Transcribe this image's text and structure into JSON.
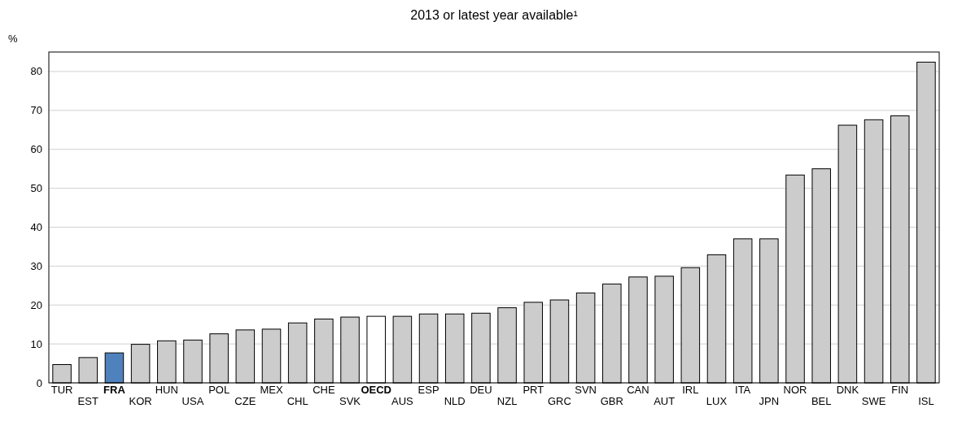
{
  "chart_data": {
    "type": "bar",
    "title": "2013 or latest year available¹",
    "ylabel": "%",
    "categories": [
      "TUR",
      "EST",
      "FRA",
      "KOR",
      "HUN",
      "USA",
      "POL",
      "CZE",
      "MEX",
      "CHL",
      "CHE",
      "SVK",
      "OECD",
      "AUS",
      "ESP",
      "NLD",
      "DEU",
      "NZL",
      "PRT",
      "GRC",
      "SVN",
      "GBR",
      "CAN",
      "AUT",
      "IRL",
      "LUX",
      "ITA",
      "JPN",
      "NOR",
      "BEL",
      "DNK",
      "SWE",
      "FIN",
      "ISL"
    ],
    "values": [
      4.7,
      6.5,
      7.7,
      9.9,
      10.8,
      11.0,
      12.6,
      13.6,
      13.8,
      15.4,
      16.4,
      16.9,
      17.1,
      17.1,
      17.7,
      17.7,
      17.9,
      19.3,
      20.7,
      21.3,
      23.1,
      25.4,
      27.2,
      27.4,
      29.6,
      32.9,
      37.0,
      37.0,
      53.4,
      55.0,
      66.2,
      67.6,
      68.6,
      82.4
    ],
    "colors": [
      "#cccccc",
      "#cccccc",
      "#4f81bd",
      "#cccccc",
      "#cccccc",
      "#cccccc",
      "#cccccc",
      "#cccccc",
      "#cccccc",
      "#cccccc",
      "#cccccc",
      "#cccccc",
      "#ffffff",
      "#cccccc",
      "#cccccc",
      "#cccccc",
      "#cccccc",
      "#cccccc",
      "#cccccc",
      "#cccccc",
      "#cccccc",
      "#cccccc",
      "#cccccc",
      "#cccccc",
      "#cccccc",
      "#cccccc",
      "#cccccc",
      "#cccccc",
      "#cccccc",
      "#cccccc",
      "#cccccc",
      "#cccccc",
      "#cccccc",
      "#cccccc"
    ],
    "ylim": [
      0,
      85
    ],
    "yticks": [
      0,
      10,
      20,
      30,
      40,
      50,
      60,
      70,
      80
    ],
    "grid": "y"
  }
}
